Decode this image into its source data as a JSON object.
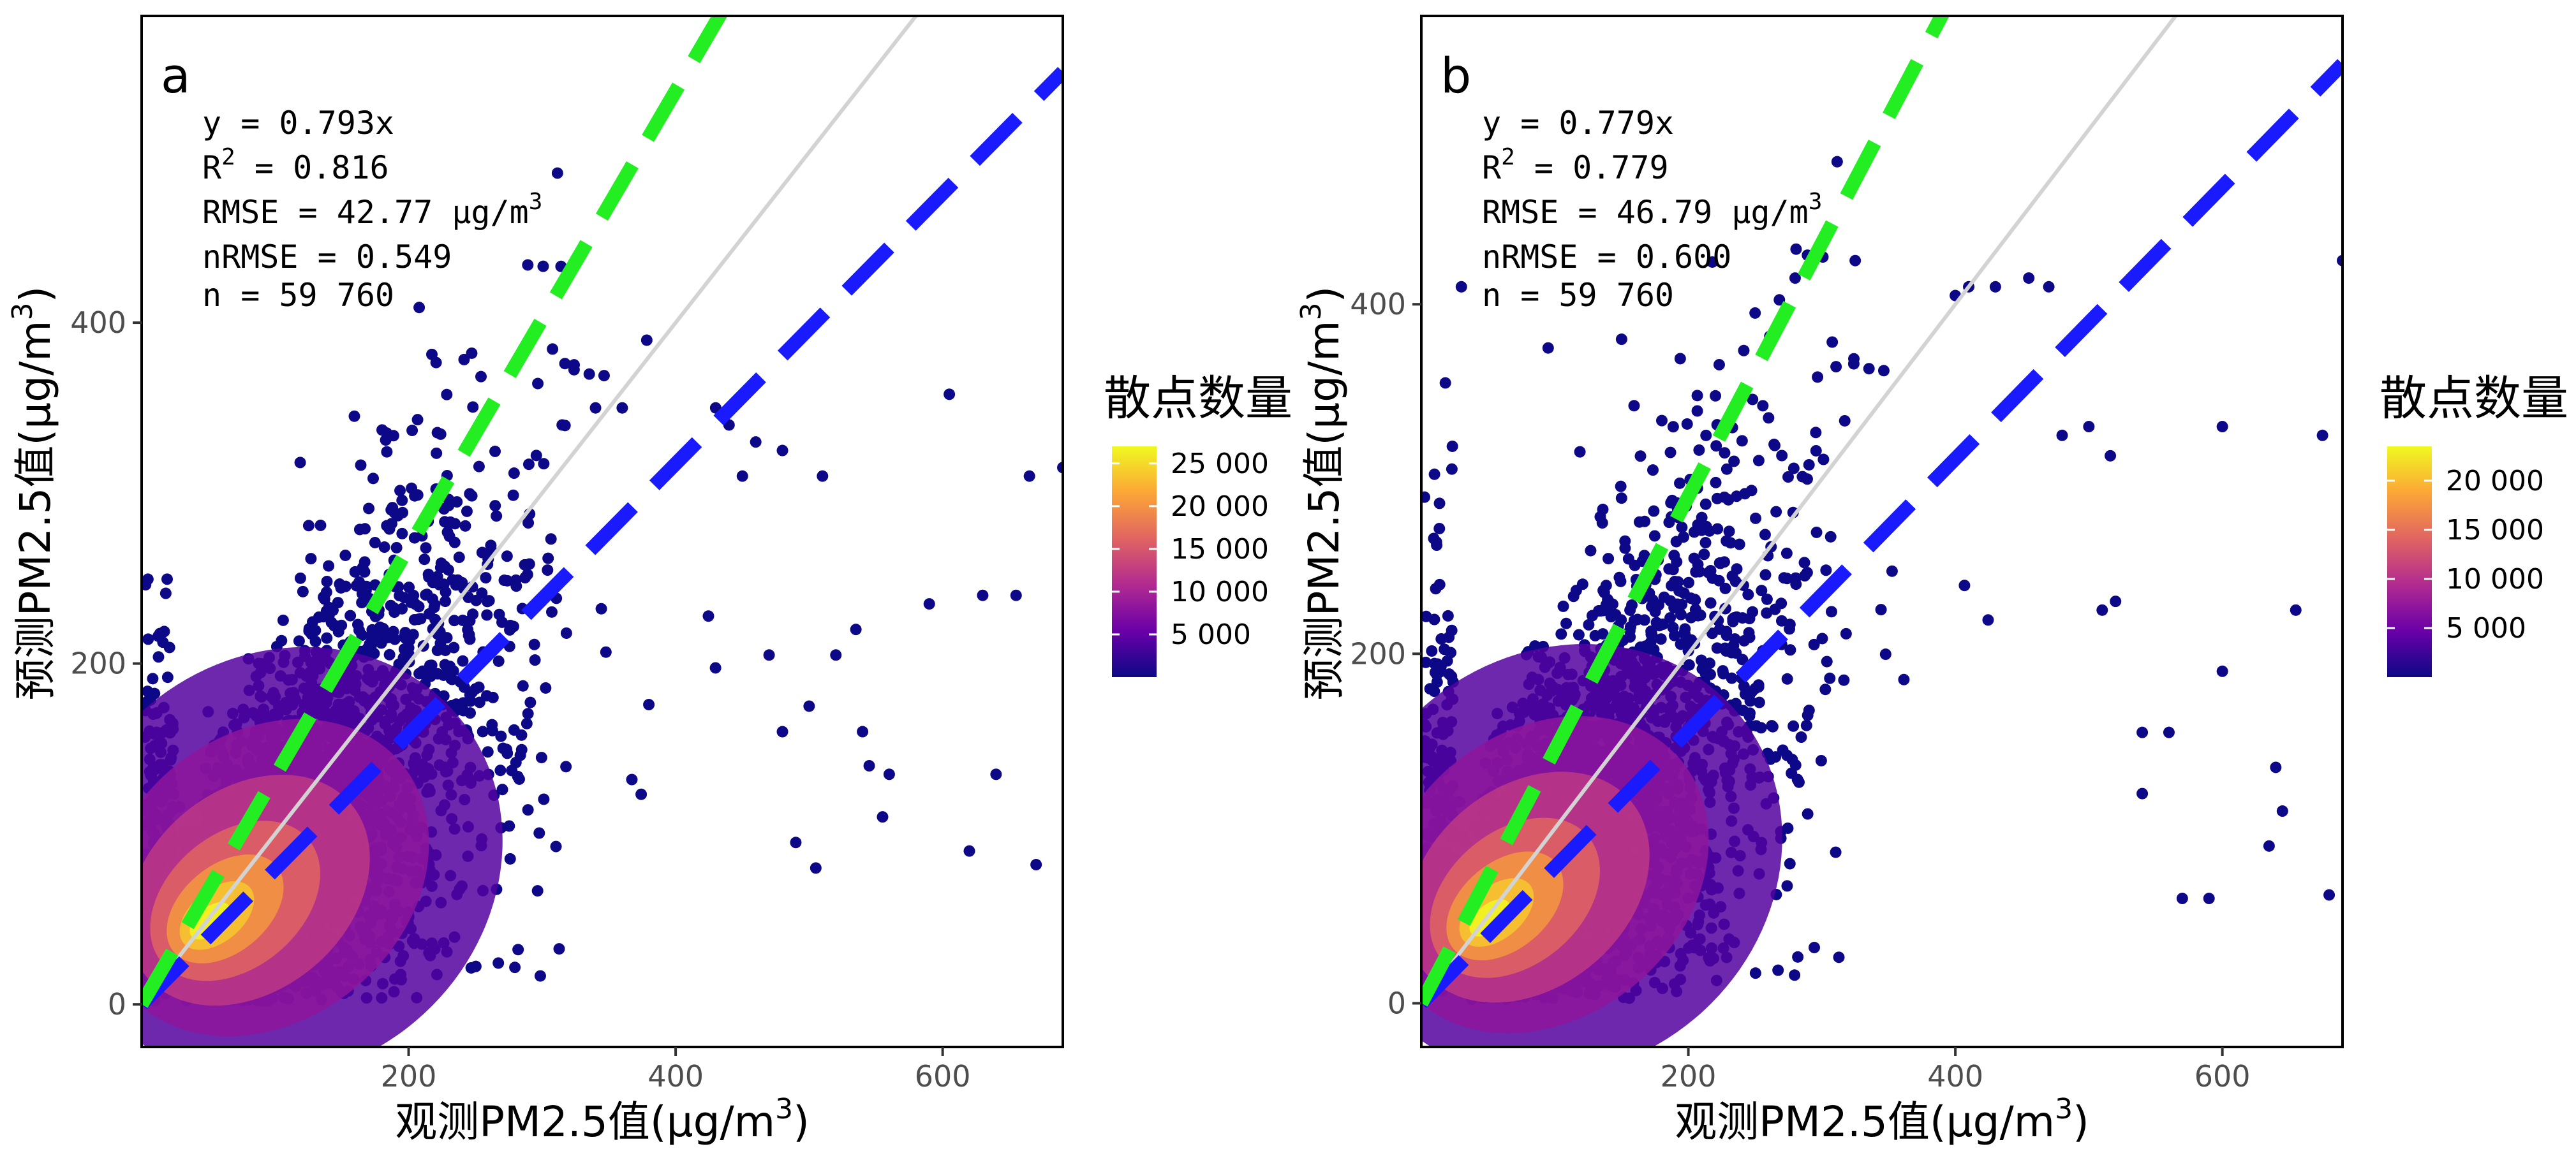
{
  "chart_data": [
    {
      "type": "scatter",
      "panel_label": "a",
      "xlabel": "观测PM2.5值(μg/m",
      "ylabel": "预测PM2.5值(μg/m",
      "unit_sup": "3",
      "xlim": [
        0,
        690
      ],
      "ylim": [
        -25,
        580
      ],
      "xticks": [
        200,
        400,
        600
      ],
      "yticks": [
        0,
        200,
        400
      ],
      "grid": false,
      "annotations": {
        "eq": "y = 0.793x",
        "r2_prefix": "R",
        "r2_sup": "2",
        "r2_value": " = 0.816",
        "rmse_prefix": "RMSE = 42.77 μg/m",
        "rmse_sup": "3",
        "nrmse": "nRMSE = 0.549",
        "n": "n = 59 760"
      },
      "lines": [
        {
          "kind": "1:1 line",
          "slope": 1.0,
          "color": "#d3d3d3",
          "dashed": false
        },
        {
          "kind": "fit",
          "slope": 0.793,
          "color": "#1a1aff",
          "dashed": true
        },
        {
          "kind": "reference",
          "slope": 1.34,
          "color": "#22ee22",
          "dashed": true
        }
      ],
      "density_core": {
        "x": 45,
        "y": 45
      },
      "outlier_points": [
        [
          605,
          358
        ],
        [
          670,
          82
        ],
        [
          640,
          135
        ],
        [
          655,
          240
        ],
        [
          630,
          240
        ],
        [
          690,
          315
        ],
        [
          665,
          310
        ],
        [
          620,
          90
        ],
        [
          590,
          235
        ],
        [
          560,
          135
        ],
        [
          545,
          140
        ],
        [
          500,
          175
        ],
        [
          480,
          160
        ],
        [
          470,
          205
        ],
        [
          510,
          310
        ],
        [
          480,
          325
        ],
        [
          460,
          330
        ],
        [
          450,
          310
        ],
        [
          520,
          205
        ],
        [
          535,
          220
        ],
        [
          555,
          110
        ],
        [
          540,
          160
        ],
        [
          505,
          80
        ],
        [
          490,
          95
        ],
        [
          430,
          350
        ],
        [
          440,
          340
        ],
        [
          360,
          350
        ],
        [
          340,
          350
        ],
        [
          315,
          340
        ],
        [
          250,
          335
        ]
      ],
      "legend": {
        "title": "散点数量",
        "colors": [
          "#0d0887",
          "#6a00a8",
          "#b12a90",
          "#e16462",
          "#fca636",
          "#f0f921"
        ],
        "ticks": [
          5000,
          10000,
          15000,
          20000,
          25000
        ],
        "tick_labels": [
          "5 000",
          "10 000",
          "15 000",
          "20 000",
          "25 000"
        ],
        "max": 27000
      }
    },
    {
      "type": "scatter",
      "panel_label": "b",
      "xlabel": "观测PM2.5值(μg/m",
      "ylabel": "预测PM2.5值(μg/m",
      "unit_sup": "3",
      "xlim": [
        0,
        690
      ],
      "ylim": [
        -25,
        565
      ],
      "xticks": [
        200,
        400,
        600
      ],
      "yticks": [
        0,
        200,
        400
      ],
      "grid": false,
      "annotations": {
        "eq": "y = 0.779x",
        "r2_prefix": "R",
        "r2_sup": "2",
        "r2_value": " = 0.779",
        "rmse_prefix": "RMSE = 46.79 μg/m",
        "rmse_sup": "3",
        "nrmse": "nRMSE = 0.600",
        "n": "n = 59 760"
      },
      "lines": [
        {
          "kind": "1:1 line",
          "slope": 1.0,
          "color": "#d3d3d3",
          "dashed": false
        },
        {
          "kind": "fit",
          "slope": 0.779,
          "color": "#1a1aff",
          "dashed": true
        },
        {
          "kind": "reference",
          "slope": 1.45,
          "color": "#22ee22",
          "dashed": true
        }
      ],
      "density_core": {
        "x": 45,
        "y": 45
      },
      "outlier_points": [
        [
          690,
          425
        ],
        [
          675,
          325
        ],
        [
          640,
          135
        ],
        [
          635,
          90
        ],
        [
          645,
          110
        ],
        [
          600,
          190
        ],
        [
          600,
          330
        ],
        [
          560,
          155
        ],
        [
          540,
          155
        ],
        [
          520,
          230
        ],
        [
          510,
          225
        ],
        [
          500,
          330
        ],
        [
          480,
          325
        ],
        [
          470,
          410
        ],
        [
          455,
          415
        ],
        [
          430,
          410
        ],
        [
          410,
          410
        ],
        [
          400,
          405
        ],
        [
          325,
          425
        ],
        [
          280,
          415
        ],
        [
          250,
          395
        ],
        [
          570,
          60
        ],
        [
          540,
          120
        ],
        [
          590,
          60
        ],
        [
          655,
          225
        ],
        [
          680,
          62
        ],
        [
          30,
          410
        ],
        [
          18,
          355
        ],
        [
          95,
          375
        ],
        [
          150,
          380
        ]
      ],
      "legend": {
        "title": "散点数量",
        "colors": [
          "#0d0887",
          "#6a00a8",
          "#b12a90",
          "#e16462",
          "#fca636",
          "#f0f921"
        ],
        "ticks": [
          5000,
          10000,
          15000,
          20000
        ],
        "tick_labels": [
          "5 000",
          "10 000",
          "15 000",
          "20 000"
        ],
        "max": 23500
      }
    }
  ]
}
